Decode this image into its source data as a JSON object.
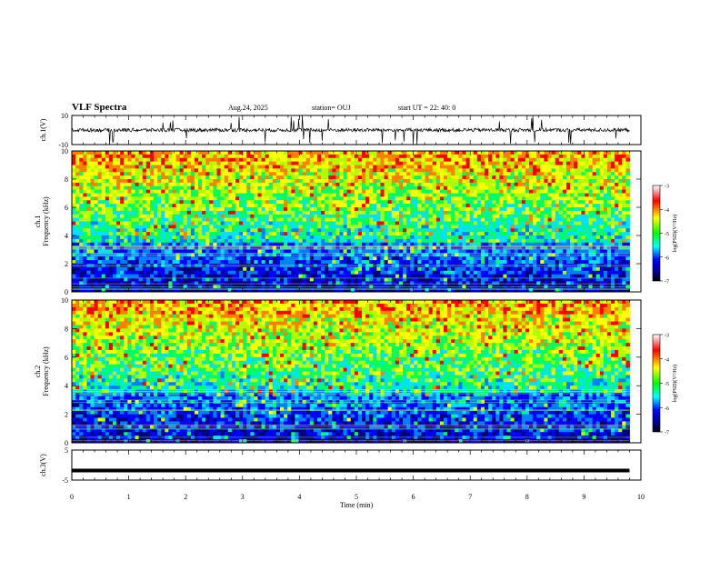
{
  "header": {
    "title": "VLF Spectra",
    "date": "Aug.24, 2025",
    "station": "station= OUJ",
    "start": "start  UT =   22: 40: 0"
  },
  "chart_data": [
    {
      "type": "line",
      "panel": "ch1-waveform",
      "ylabel": "ch.1(V)",
      "ylim": [
        -10,
        10
      ],
      "yticks": [
        "10",
        "-10"
      ],
      "xlim": [
        0,
        10
      ],
      "baseline_v": 0,
      "description_series": {
        "name": "",
        "approx_level_v": 0
      }
    },
    {
      "type": "heatmap",
      "panel": "ch1-spectrogram",
      "ylabel": "ch.1",
      "ylabel2": "Frequency  (kHz)",
      "ylim": [
        0,
        10
      ],
      "yticks": [
        "0",
        "2",
        "4",
        "6",
        "8",
        "10"
      ],
      "xlim": [
        0,
        9.8
      ],
      "colorbar": {
        "label": "log(PSD)(V²/Hz)",
        "ticks": [
          "-3",
          "-4",
          "-5",
          "-6",
          "-7"
        ],
        "range": [
          -7,
          -3
        ]
      }
    },
    {
      "type": "heatmap",
      "panel": "ch2-spectrogram",
      "ylabel": "ch.2",
      "ylabel2": "Frequency  (kHz)",
      "ylim": [
        0,
        10
      ],
      "yticks": [
        "0",
        "2",
        "4",
        "6",
        "8",
        "10"
      ],
      "xlim": [
        0,
        9.8
      ],
      "colorbar": {
        "label": "log(PSD)(V²/Hz)",
        "ticks": [
          "-3",
          "-4",
          "-5",
          "-6",
          "-7"
        ],
        "range": [
          -7,
          -3
        ]
      }
    },
    {
      "type": "line",
      "panel": "ch3-waveform",
      "ylabel": "ch.3(V)",
      "ylim": [
        -5,
        5
      ],
      "yticks": [
        "5",
        "-5"
      ],
      "xlim": [
        0,
        10
      ],
      "series": [
        {
          "name": "",
          "x": [
            0,
            9.8
          ],
          "y": [
            -1.8,
            -1.8
          ]
        }
      ]
    }
  ],
  "xaxis": {
    "label": "Time  (min)",
    "ticks": [
      "0",
      "1",
      "2",
      "3",
      "4",
      "5",
      "6",
      "7",
      "8",
      "9",
      "10"
    ],
    "range": [
      0,
      10
    ]
  }
}
